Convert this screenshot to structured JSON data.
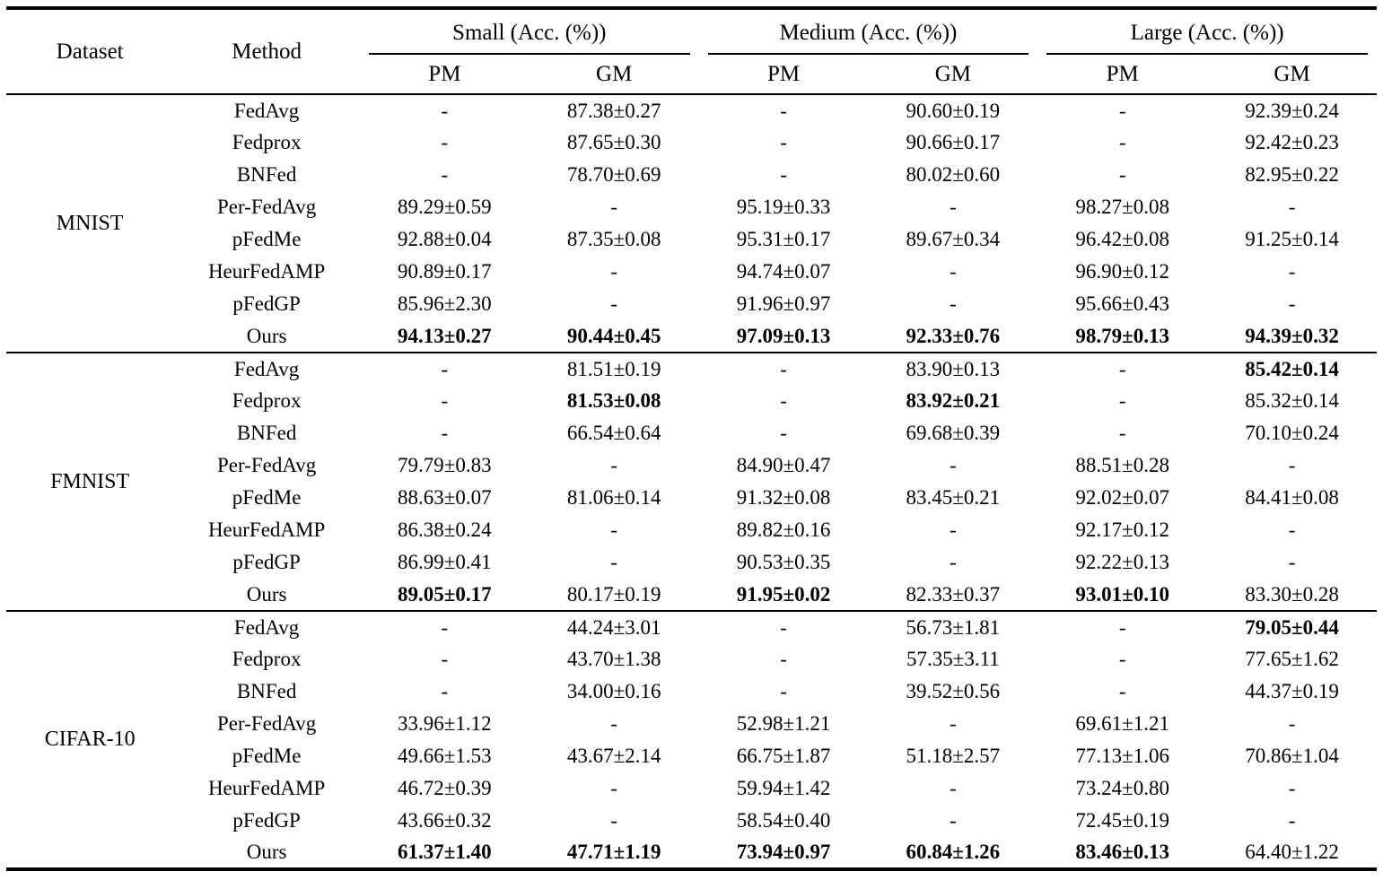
{
  "colors": {
    "text": "#000000",
    "background": "#ffffff",
    "rule": "#000000"
  },
  "table": {
    "headers": {
      "dataset": "Dataset",
      "method": "Method",
      "groups": [
        {
          "label": "Small (Acc. (%))",
          "sub": [
            "PM",
            "GM"
          ]
        },
        {
          "label": "Medium (Acc. (%))",
          "sub": [
            "PM",
            "GM"
          ]
        },
        {
          "label": "Large (Acc. (%))",
          "sub": [
            "PM",
            "GM"
          ]
        }
      ]
    },
    "sections": [
      {
        "dataset": "MNIST",
        "rows": [
          {
            "method": "FedAvg",
            "values": [
              "-",
              "87.38±0.27",
              "-",
              "90.60±0.19",
              "-",
              "92.39±0.24"
            ],
            "bold": [
              false,
              false,
              false,
              false,
              false,
              false
            ]
          },
          {
            "method": "Fedprox",
            "values": [
              "-",
              "87.65±0.30",
              "-",
              "90.66±0.17",
              "-",
              "92.42±0.23"
            ],
            "bold": [
              false,
              false,
              false,
              false,
              false,
              false
            ]
          },
          {
            "method": "BNFed",
            "values": [
              "-",
              "78.70±0.69",
              "-",
              "80.02±0.60",
              "-",
              "82.95±0.22"
            ],
            "bold": [
              false,
              false,
              false,
              false,
              false,
              false
            ]
          },
          {
            "method": "Per-FedAvg",
            "values": [
              "89.29±0.59",
              "-",
              "95.19±0.33",
              "-",
              "98.27±0.08",
              "-"
            ],
            "bold": [
              false,
              false,
              false,
              false,
              false,
              false
            ]
          },
          {
            "method": "pFedMe",
            "values": [
              "92.88±0.04",
              "87.35±0.08",
              "95.31±0.17",
              "89.67±0.34",
              "96.42±0.08",
              "91.25±0.14"
            ],
            "bold": [
              false,
              false,
              false,
              false,
              false,
              false
            ]
          },
          {
            "method": "HeurFedAMP",
            "values": [
              "90.89±0.17",
              "-",
              "94.74±0.07",
              "-",
              "96.90±0.12",
              "-"
            ],
            "bold": [
              false,
              false,
              false,
              false,
              false,
              false
            ]
          },
          {
            "method": "pFedGP",
            "values": [
              "85.96±2.30",
              "-",
              "91.96±0.97",
              "-",
              "95.66±0.43",
              "-"
            ],
            "bold": [
              false,
              false,
              false,
              false,
              false,
              false
            ]
          },
          {
            "method": "Ours",
            "values": [
              "94.13±0.27",
              "90.44±0.45",
              "97.09±0.13",
              "92.33±0.76",
              "98.79±0.13",
              "94.39±0.32"
            ],
            "bold": [
              true,
              true,
              true,
              true,
              true,
              true
            ]
          }
        ]
      },
      {
        "dataset": "FMNIST",
        "rows": [
          {
            "method": "FedAvg",
            "values": [
              "-",
              "81.51±0.19",
              "-",
              "83.90±0.13",
              "-",
              "85.42±0.14"
            ],
            "bold": [
              false,
              false,
              false,
              false,
              false,
              true
            ]
          },
          {
            "method": "Fedprox",
            "values": [
              "-",
              "81.53±0.08",
              "-",
              "83.92±0.21",
              "-",
              "85.32±0.14"
            ],
            "bold": [
              false,
              true,
              false,
              true,
              false,
              false
            ]
          },
          {
            "method": "BNFed",
            "values": [
              "-",
              "66.54±0.64",
              "-",
              "69.68±0.39",
              "-",
              "70.10±0.24"
            ],
            "bold": [
              false,
              false,
              false,
              false,
              false,
              false
            ]
          },
          {
            "method": "Per-FedAvg",
            "values": [
              "79.79±0.83",
              "-",
              "84.90±0.47",
              "-",
              "88.51±0.28",
              "-"
            ],
            "bold": [
              false,
              false,
              false,
              false,
              false,
              false
            ]
          },
          {
            "method": "pFedMe",
            "values": [
              "88.63±0.07",
              "81.06±0.14",
              "91.32±0.08",
              "83.45±0.21",
              "92.02±0.07",
              "84.41±0.08"
            ],
            "bold": [
              false,
              false,
              false,
              false,
              false,
              false
            ]
          },
          {
            "method": "HeurFedAMP",
            "values": [
              "86.38±0.24",
              "-",
              "89.82±0.16",
              "-",
              "92.17±0.12",
              "-"
            ],
            "bold": [
              false,
              false,
              false,
              false,
              false,
              false
            ]
          },
          {
            "method": "pFedGP",
            "values": [
              "86.99±0.41",
              "-",
              "90.53±0.35",
              "-",
              "92.22±0.13",
              "-"
            ],
            "bold": [
              false,
              false,
              false,
              false,
              false,
              false
            ]
          },
          {
            "method": "Ours",
            "values": [
              "89.05±0.17",
              "80.17±0.19",
              "91.95±0.02",
              "82.33±0.37",
              "93.01±0.10",
              "83.30±0.28"
            ],
            "bold": [
              true,
              false,
              true,
              false,
              true,
              false
            ]
          }
        ]
      },
      {
        "dataset": "CIFAR-10",
        "rows": [
          {
            "method": "FedAvg",
            "values": [
              "-",
              "44.24±3.01",
              "-",
              "56.73±1.81",
              "-",
              "79.05±0.44"
            ],
            "bold": [
              false,
              false,
              false,
              false,
              false,
              true
            ]
          },
          {
            "method": "Fedprox",
            "values": [
              "-",
              "43.70±1.38",
              "-",
              "57.35±3.11",
              "-",
              "77.65±1.62"
            ],
            "bold": [
              false,
              false,
              false,
              false,
              false,
              false
            ]
          },
          {
            "method": "BNFed",
            "values": [
              "-",
              "34.00±0.16",
              "-",
              "39.52±0.56",
              "-",
              "44.37±0.19"
            ],
            "bold": [
              false,
              false,
              false,
              false,
              false,
              false
            ]
          },
          {
            "method": "Per-FedAvg",
            "values": [
              "33.96±1.12",
              "-",
              "52.98±1.21",
              "-",
              "69.61±1.21",
              "-"
            ],
            "bold": [
              false,
              false,
              false,
              false,
              false,
              false
            ]
          },
          {
            "method": "pFedMe",
            "values": [
              "49.66±1.53",
              "43.67±2.14",
              "66.75±1.87",
              "51.18±2.57",
              "77.13±1.06",
              "70.86±1.04"
            ],
            "bold": [
              false,
              false,
              false,
              false,
              false,
              false
            ]
          },
          {
            "method": "HeurFedAMP",
            "values": [
              "46.72±0.39",
              "-",
              "59.94±1.42",
              "-",
              "73.24±0.80",
              "-"
            ],
            "bold": [
              false,
              false,
              false,
              false,
              false,
              false
            ]
          },
          {
            "method": "pFedGP",
            "values": [
              "43.66±0.32",
              "-",
              "58.54±0.40",
              "-",
              "72.45±0.19",
              "-"
            ],
            "bold": [
              false,
              false,
              false,
              false,
              false,
              false
            ]
          },
          {
            "method": "Ours",
            "values": [
              "61.37±1.40",
              "47.71±1.19",
              "73.94±0.97",
              "60.84±1.26",
              "83.46±0.13",
              "64.40±1.22"
            ],
            "bold": [
              true,
              true,
              true,
              true,
              true,
              false
            ]
          }
        ]
      }
    ]
  }
}
